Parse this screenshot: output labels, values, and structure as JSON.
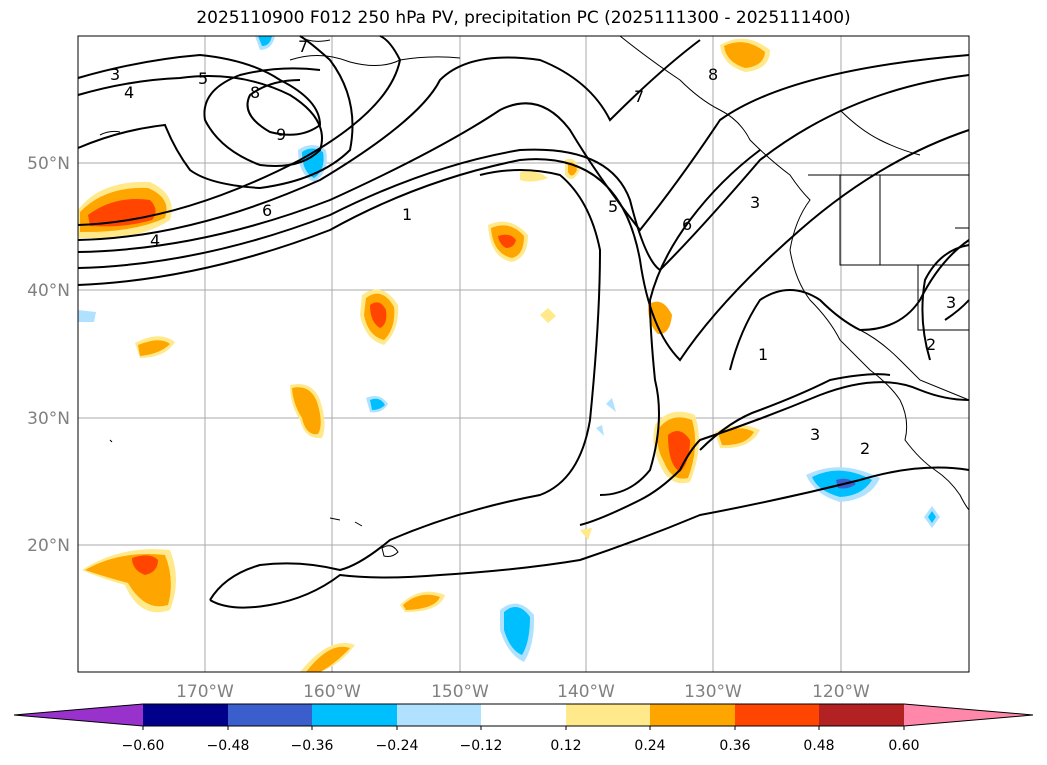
{
  "title": "2025110900 F012 250 hPa PV, precipitation PC (2025111300 - 2025111400)",
  "map": {
    "lat_labels": [
      "50°N",
      "40°N",
      "30°N",
      "20°N"
    ],
    "lon_labels": [
      "170°W",
      "160°W",
      "150°W",
      "140°W",
      "130°W",
      "120°W"
    ],
    "contour_labels": [
      "3",
      "4",
      "5",
      "7",
      "8",
      "9",
      "6",
      "4",
      "1",
      "7",
      "8",
      "5",
      "6",
      "3",
      "1",
      "2",
      "3",
      "2",
      "3"
    ]
  },
  "colorbar": {
    "ticks": [
      "−0.60",
      "−0.48",
      "−0.36",
      "−0.24",
      "−0.12",
      "0.12",
      "0.24",
      "0.36",
      "0.48",
      "0.60"
    ],
    "colors": [
      "#9932cc",
      "#00008b",
      "#3a5fcd",
      "#00bfff",
      "#b0e2ff",
      "#ffffff",
      "#ffe98a",
      "#ffa500",
      "#ff4500",
      "#b22222",
      "#ff88aa"
    ]
  }
}
